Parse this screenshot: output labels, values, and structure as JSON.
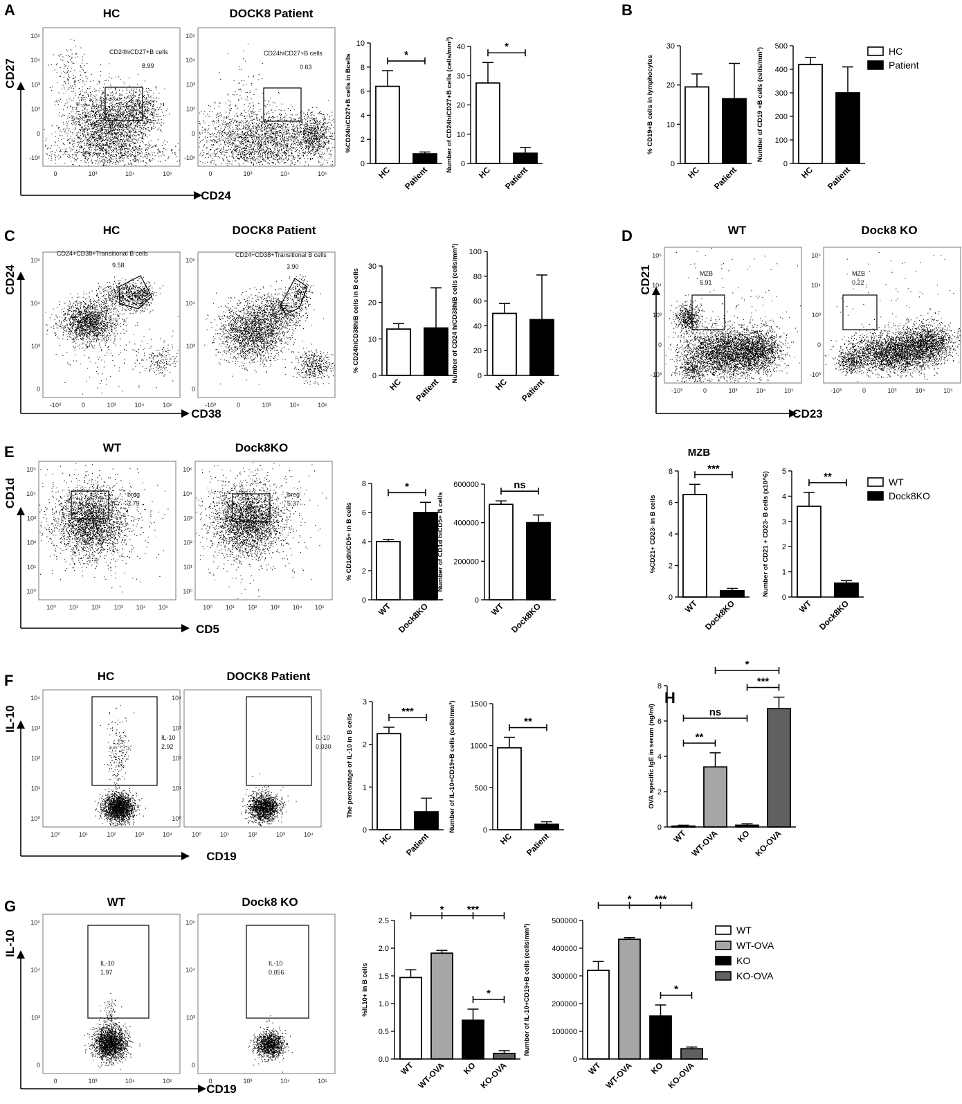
{
  "colors": {
    "hc": "#ffffff",
    "patient": "#000000",
    "wt_ova": "#a6a6a6",
    "ko_ova": "#606060",
    "outline": "#000000"
  },
  "panel_letters": [
    "A",
    "B",
    "C",
    "D",
    "E",
    "F",
    "G",
    "H"
  ],
  "flow": [
    {
      "id": "A-HC",
      "title": "HC",
      "xaxis": "CD24",
      "yaxis": "CD27",
      "xticks": [
        "0",
        "10³",
        "10⁴",
        "10⁵"
      ],
      "yticks": [
        "10⁵",
        "10⁴",
        "10³",
        "10²",
        "0",
        "-10²"
      ],
      "gates": [
        {
          "label": "CD24hiCD27+B cells",
          "value": "8.99"
        }
      ]
    },
    {
      "id": "A-Pt",
      "title": "DOCK8 Patient",
      "xticks": [
        "0",
        "10³",
        "10⁴",
        "10⁵"
      ],
      "yticks": [
        "10⁵",
        "10⁴",
        "10³",
        "10²",
        "0",
        "-10²"
      ],
      "gates": [
        {
          "label": "CD24hiCD27+B cells",
          "value": "0.63"
        }
      ]
    },
    {
      "id": "C-HC",
      "title": "HC",
      "xaxis": "CD38",
      "yaxis": "CD24",
      "xticks": [
        "-10³",
        "0",
        "10³",
        "10⁴",
        "10⁵"
      ],
      "yticks": [
        "10⁵",
        "10⁴",
        "10³",
        "0"
      ],
      "gates": [
        {
          "label": "CD24+CD38+Transitional B cells",
          "value": "9.58"
        }
      ]
    },
    {
      "id": "C-Pt",
      "title": "DOCK8 Patient",
      "xticks": [
        "-10³",
        "0",
        "10³",
        "10⁴",
        "10⁵"
      ],
      "yticks": [
        "10⁵",
        "10⁴",
        "10³",
        "0"
      ],
      "gates": [
        {
          "label": "CD24+CD38+Transitional B cells",
          "value": "3.90"
        }
      ]
    },
    {
      "id": "D-WT",
      "title": "WT",
      "xaxis": "CD23",
      "yaxis": "CD21",
      "xticks": [
        "-10³",
        "0",
        "10³",
        "10⁴",
        "10⁵"
      ],
      "yticks": [
        "10⁵",
        "10⁴",
        "10³",
        "0",
        "-10³"
      ],
      "gates": [
        {
          "label": "MZB",
          "value": "5.91"
        }
      ]
    },
    {
      "id": "D-KO",
      "title": "Dock8 KO",
      "xticks": [
        "-10³",
        "0",
        "10³",
        "10⁴",
        "10⁵"
      ],
      "yticks": [
        "10⁵",
        "10⁴",
        "10³",
        "0",
        "-10³"
      ],
      "gates": [
        {
          "label": "MZB",
          "value": "0.22"
        }
      ]
    },
    {
      "id": "E-WT",
      "title": "WT",
      "xaxis": "CD5",
      "yaxis": "CD1d",
      "xticks": [
        "10⁰",
        "10¹",
        "10²",
        "10³",
        "10⁴",
        "10⁵"
      ],
      "yticks": [
        "10⁵",
        "10⁴",
        "10³",
        "10²",
        "10¹",
        "10⁰"
      ],
      "gates": [
        {
          "label": "breg",
          "value": "3.79"
        }
      ]
    },
    {
      "id": "E-KO",
      "title": "Dock8KO",
      "xticks": [
        "10⁰",
        "10¹",
        "10²",
        "10³",
        "10⁴",
        "10⁵"
      ],
      "yticks": [
        "10⁵",
        "10⁴",
        "10³",
        "10²",
        "10¹",
        "10⁰"
      ],
      "gates": [
        {
          "label": "breg",
          "value": "5.37"
        }
      ]
    },
    {
      "id": "F-HC",
      "title": "HC",
      "xaxis": "CD19",
      "yaxis": "IL-10",
      "xticks": [
        "10⁰",
        "10¹",
        "10²",
        "10³",
        "10⁴"
      ],
      "yticks": [
        "10⁴",
        "10³",
        "10²",
        "10¹",
        "10⁰"
      ],
      "gates": [
        {
          "label": "IL-10",
          "value": "2.92"
        }
      ]
    },
    {
      "id": "F-Pt",
      "title": "DOCK8 Patient",
      "xticks": [
        "10⁰",
        "10¹",
        "10²",
        "10³",
        "10⁴"
      ],
      "yticks": [
        "10⁴",
        "10³",
        "10²",
        "10¹",
        "10⁰"
      ],
      "gates": [
        {
          "label": "IL-10",
          "value": "0.030"
        }
      ]
    },
    {
      "id": "G-WT",
      "title": "WT",
      "xaxis": "CD19",
      "yaxis": "IL-10",
      "xticks": [
        "0",
        "10³",
        "10⁴",
        "10⁵"
      ],
      "yticks": [
        "10⁵",
        "10⁴",
        "10³",
        "0"
      ],
      "gates": [
        {
          "label": "IL-10",
          "value": "1.97"
        }
      ]
    },
    {
      "id": "G-KO",
      "title": "Dock8 KO",
      "xticks": [
        "0",
        "10³",
        "10⁴",
        "10⁵"
      ],
      "yticks": [
        "10⁵",
        "10⁴",
        "10³",
        "0"
      ],
      "gates": [
        {
          "label": "IL-10",
          "value": "0.056"
        }
      ]
    }
  ],
  "legends": [
    {
      "id": "leg-B",
      "entries": [
        {
          "name": "HC",
          "color": "#ffffff"
        },
        {
          "name": "Patient",
          "color": "#000000"
        }
      ]
    },
    {
      "id": "leg-D",
      "entries": [
        {
          "name": "WT",
          "color": "#ffffff"
        },
        {
          "name": "Dock8KO",
          "color": "#000000"
        }
      ]
    },
    {
      "id": "leg-G",
      "entries": [
        {
          "name": "WT",
          "color": "#ffffff"
        },
        {
          "name": "WT-OVA",
          "color": "#a6a6a6"
        },
        {
          "name": "KO",
          "color": "#000000"
        },
        {
          "name": "KO-OVA",
          "color": "#606060"
        }
      ]
    }
  ],
  "chart_data": [
    {
      "id": "A1",
      "type": "bar",
      "ylabel": "%CD24hiCD27+B cells in Bcells",
      "categories": [
        "HC",
        "Patient"
      ],
      "values": [
        6.4,
        0.8
      ],
      "errors": [
        1.3,
        0.15
      ],
      "colors": [
        "#ffffff",
        "#000000"
      ],
      "ylim": [
        0,
        10
      ],
      "yticks": [
        "0",
        "2",
        "4",
        "6",
        "8",
        "10"
      ],
      "sig": [
        {
          "from": 0,
          "to": 1,
          "label": "*"
        }
      ]
    },
    {
      "id": "A2",
      "type": "bar",
      "ylabel": "Number of CD24hiCD27+B cells (cells/mm³)",
      "categories": [
        "HC",
        "Patient"
      ],
      "values": [
        27.5,
        3.5
      ],
      "errors": [
        7,
        2
      ],
      "colors": [
        "#ffffff",
        "#000000"
      ],
      "ylim": [
        0,
        40
      ],
      "yticks": [
        "0",
        "10",
        "20",
        "30",
        "40"
      ],
      "sig": [
        {
          "from": 0,
          "to": 1,
          "label": "*"
        }
      ]
    },
    {
      "id": "B1",
      "type": "bar",
      "ylabel": "% CD19+B cells in lymphocytes",
      "categories": [
        "HC",
        "Patient"
      ],
      "values": [
        19.5,
        16.5
      ],
      "errors": [
        3.3,
        9
      ],
      "colors": [
        "#ffffff",
        "#000000"
      ],
      "ylim": [
        0,
        30
      ],
      "yticks": [
        "0",
        "10",
        "20",
        "30"
      ],
      "sig": []
    },
    {
      "id": "B2",
      "type": "bar",
      "ylabel": "Number of CD19 +B cells (cells/mm³)",
      "categories": [
        "HC",
        "Patient"
      ],
      "values": [
        420,
        300
      ],
      "errors": [
        30,
        110
      ],
      "colors": [
        "#ffffff",
        "#000000"
      ],
      "ylim": [
        0,
        500
      ],
      "yticks": [
        "0",
        "100",
        "200",
        "300",
        "400",
        "500"
      ],
      "sig": []
    },
    {
      "id": "C1",
      "type": "bar",
      "ylabel": "% CD24hiCD38hiB cells in B cells",
      "categories": [
        "HC",
        "Patient"
      ],
      "values": [
        12.7,
        13
      ],
      "errors": [
        1.5,
        11
      ],
      "colors": [
        "#ffffff",
        "#000000"
      ],
      "ylim": [
        0,
        30
      ],
      "yticks": [
        "0",
        "10",
        "20",
        "30"
      ],
      "sig": []
    },
    {
      "id": "C2",
      "type": "bar",
      "ylabel": "Number of CD24 hiCD38hiB cells (cells/mm³)",
      "categories": [
        "HC",
        "Patient"
      ],
      "values": [
        50,
        45
      ],
      "errors": [
        8,
        36
      ],
      "colors": [
        "#ffffff",
        "#000000"
      ],
      "ylim": [
        0,
        100
      ],
      "yticks": [
        "0",
        "20",
        "40",
        "60",
        "80",
        "100"
      ],
      "sig": []
    },
    {
      "id": "D1",
      "type": "bar",
      "title": "MZB",
      "ylabel": "%CD21+ CD23- in B cells",
      "categories": [
        "WT",
        "Dock8KO"
      ],
      "values": [
        6.5,
        0.4
      ],
      "errors": [
        0.65,
        0.15
      ],
      "colors": [
        "#ffffff",
        "#000000"
      ],
      "ylim": [
        0,
        8
      ],
      "yticks": [
        "0",
        "2",
        "4",
        "6",
        "8"
      ],
      "sig": [
        {
          "from": 0,
          "to": 1,
          "label": "***"
        }
      ]
    },
    {
      "id": "D2",
      "type": "bar",
      "ylabel": "Number of CD21 + CD23- B cells  (x10^6)",
      "categories": [
        "WT",
        "Dock8KO"
      ],
      "values": [
        3.6,
        0.55
      ],
      "errors": [
        0.55,
        0.1
      ],
      "colors": [
        "#ffffff",
        "#000000"
      ],
      "ylim": [
        0,
        5
      ],
      "yticks": [
        "0",
        "1",
        "2",
        "3",
        "4",
        "5"
      ],
      "sig": [
        {
          "from": 0,
          "to": 1,
          "label": "**"
        }
      ]
    },
    {
      "id": "E1",
      "type": "bar",
      "ylabel": "% CD1dhiCD5+ in B cells",
      "categories": [
        "WT",
        "Dock8KO"
      ],
      "values": [
        4.0,
        6.0
      ],
      "errors": [
        0.15,
        0.7
      ],
      "colors": [
        "#ffffff",
        "#000000"
      ],
      "ylim": [
        0,
        8
      ],
      "yticks": [
        "0",
        "2",
        "4",
        "6",
        "8"
      ],
      "sig": [
        {
          "from": 0,
          "to": 1,
          "label": "*"
        }
      ]
    },
    {
      "id": "E2",
      "type": "bar",
      "ylabel": "Number of CD1d hiCD5+ B cells",
      "categories": [
        "WT",
        "Dock8KO"
      ],
      "values": [
        495000,
        400000
      ],
      "errors": [
        18000,
        40000
      ],
      "colors": [
        "#ffffff",
        "#000000"
      ],
      "ylim": [
        0,
        600000
      ],
      "yticks": [
        "0",
        "200000",
        "400000",
        "600000"
      ],
      "sig": [
        {
          "from": 0,
          "to": 1,
          "label": "ns"
        }
      ]
    },
    {
      "id": "F1",
      "type": "bar",
      "ylabel": "The percentage of IL-10 in B cells",
      "categories": [
        "HC",
        "Patient"
      ],
      "values": [
        2.25,
        0.42
      ],
      "errors": [
        0.15,
        0.32
      ],
      "colors": [
        "#ffffff",
        "#000000"
      ],
      "ylim": [
        0,
        3
      ],
      "yticks": [
        "0",
        "1",
        "2",
        "3"
      ],
      "sig": [
        {
          "from": 0,
          "to": 1,
          "label": "***"
        }
      ]
    },
    {
      "id": "F2",
      "type": "bar",
      "ylabel": "Number of IL-10+CD19+B cells (cells/mm³)",
      "categories": [
        "HC",
        "Patient"
      ],
      "values": [
        975,
        65
      ],
      "errors": [
        125,
        30
      ],
      "colors": [
        "#ffffff",
        "#000000"
      ],
      "ylim": [
        0,
        1500
      ],
      "yticks": [
        "0",
        "500",
        "1000",
        "1500"
      ],
      "sig": [
        {
          "from": 0,
          "to": 1,
          "label": "**"
        }
      ]
    },
    {
      "id": "H",
      "type": "bar",
      "ylabel": "OVA specific IgE in serum (ng/ml)",
      "categories": [
        "WT",
        "WT-OVA",
        "KO",
        "KO-OVA"
      ],
      "values": [
        0.05,
        3.4,
        0.1,
        6.7
      ],
      "errors": [
        0.05,
        0.8,
        0.08,
        0.65
      ],
      "colors": [
        "#ffffff",
        "#a6a6a6",
        "#000000",
        "#606060"
      ],
      "ylim": [
        0,
        8
      ],
      "yticks": [
        "0",
        "2",
        "4",
        "6",
        "8"
      ],
      "sig": [
        {
          "from": 0,
          "to": 1,
          "label": "**"
        },
        {
          "from": 0,
          "to": 2,
          "label": "ns"
        },
        {
          "from": 2,
          "to": 3,
          "label": "***"
        },
        {
          "from": 1,
          "to": 3,
          "label": "*"
        }
      ]
    },
    {
      "id": "G1",
      "type": "bar",
      "ylabel": "%IL10+ in B cells",
      "categories": [
        "WT",
        "WT-OVA",
        "KO",
        "KO-OVA"
      ],
      "values": [
        1.47,
        1.91,
        0.7,
        0.1
      ],
      "errors": [
        0.14,
        0.05,
        0.2,
        0.05
      ],
      "colors": [
        "#ffffff",
        "#a6a6a6",
        "#000000",
        "#606060"
      ],
      "ylim": [
        0,
        2.5
      ],
      "yticks": [
        "0.0",
        "0.5",
        "1.0",
        "1.5",
        "2.0",
        "2.5"
      ],
      "sig": [
        {
          "from": 0,
          "to": 2,
          "label": "*"
        },
        {
          "from": 2,
          "to": 3,
          "label": "*"
        },
        {
          "from": 1,
          "to": 3,
          "label": "***"
        }
      ]
    },
    {
      "id": "G2",
      "type": "bar",
      "ylabel": "Number of IL-10+CD19+B cells (cells/mm³)",
      "categories": [
        "WT",
        "WT-OVA",
        "KO",
        "KO-OVA"
      ],
      "values": [
        320000,
        432000,
        155000,
        37000
      ],
      "errors": [
        32000,
        6000,
        40000,
        6000
      ],
      "colors": [
        "#ffffff",
        "#a6a6a6",
        "#000000",
        "#606060"
      ],
      "ylim": [
        0,
        500000
      ],
      "yticks": [
        "0",
        "100000",
        "200000",
        "300000",
        "400000",
        "500000"
      ],
      "sig": [
        {
          "from": 0,
          "to": 2,
          "label": "*"
        },
        {
          "from": 2,
          "to": 3,
          "label": "*"
        },
        {
          "from": 1,
          "to": 3,
          "label": "***"
        }
      ]
    }
  ]
}
